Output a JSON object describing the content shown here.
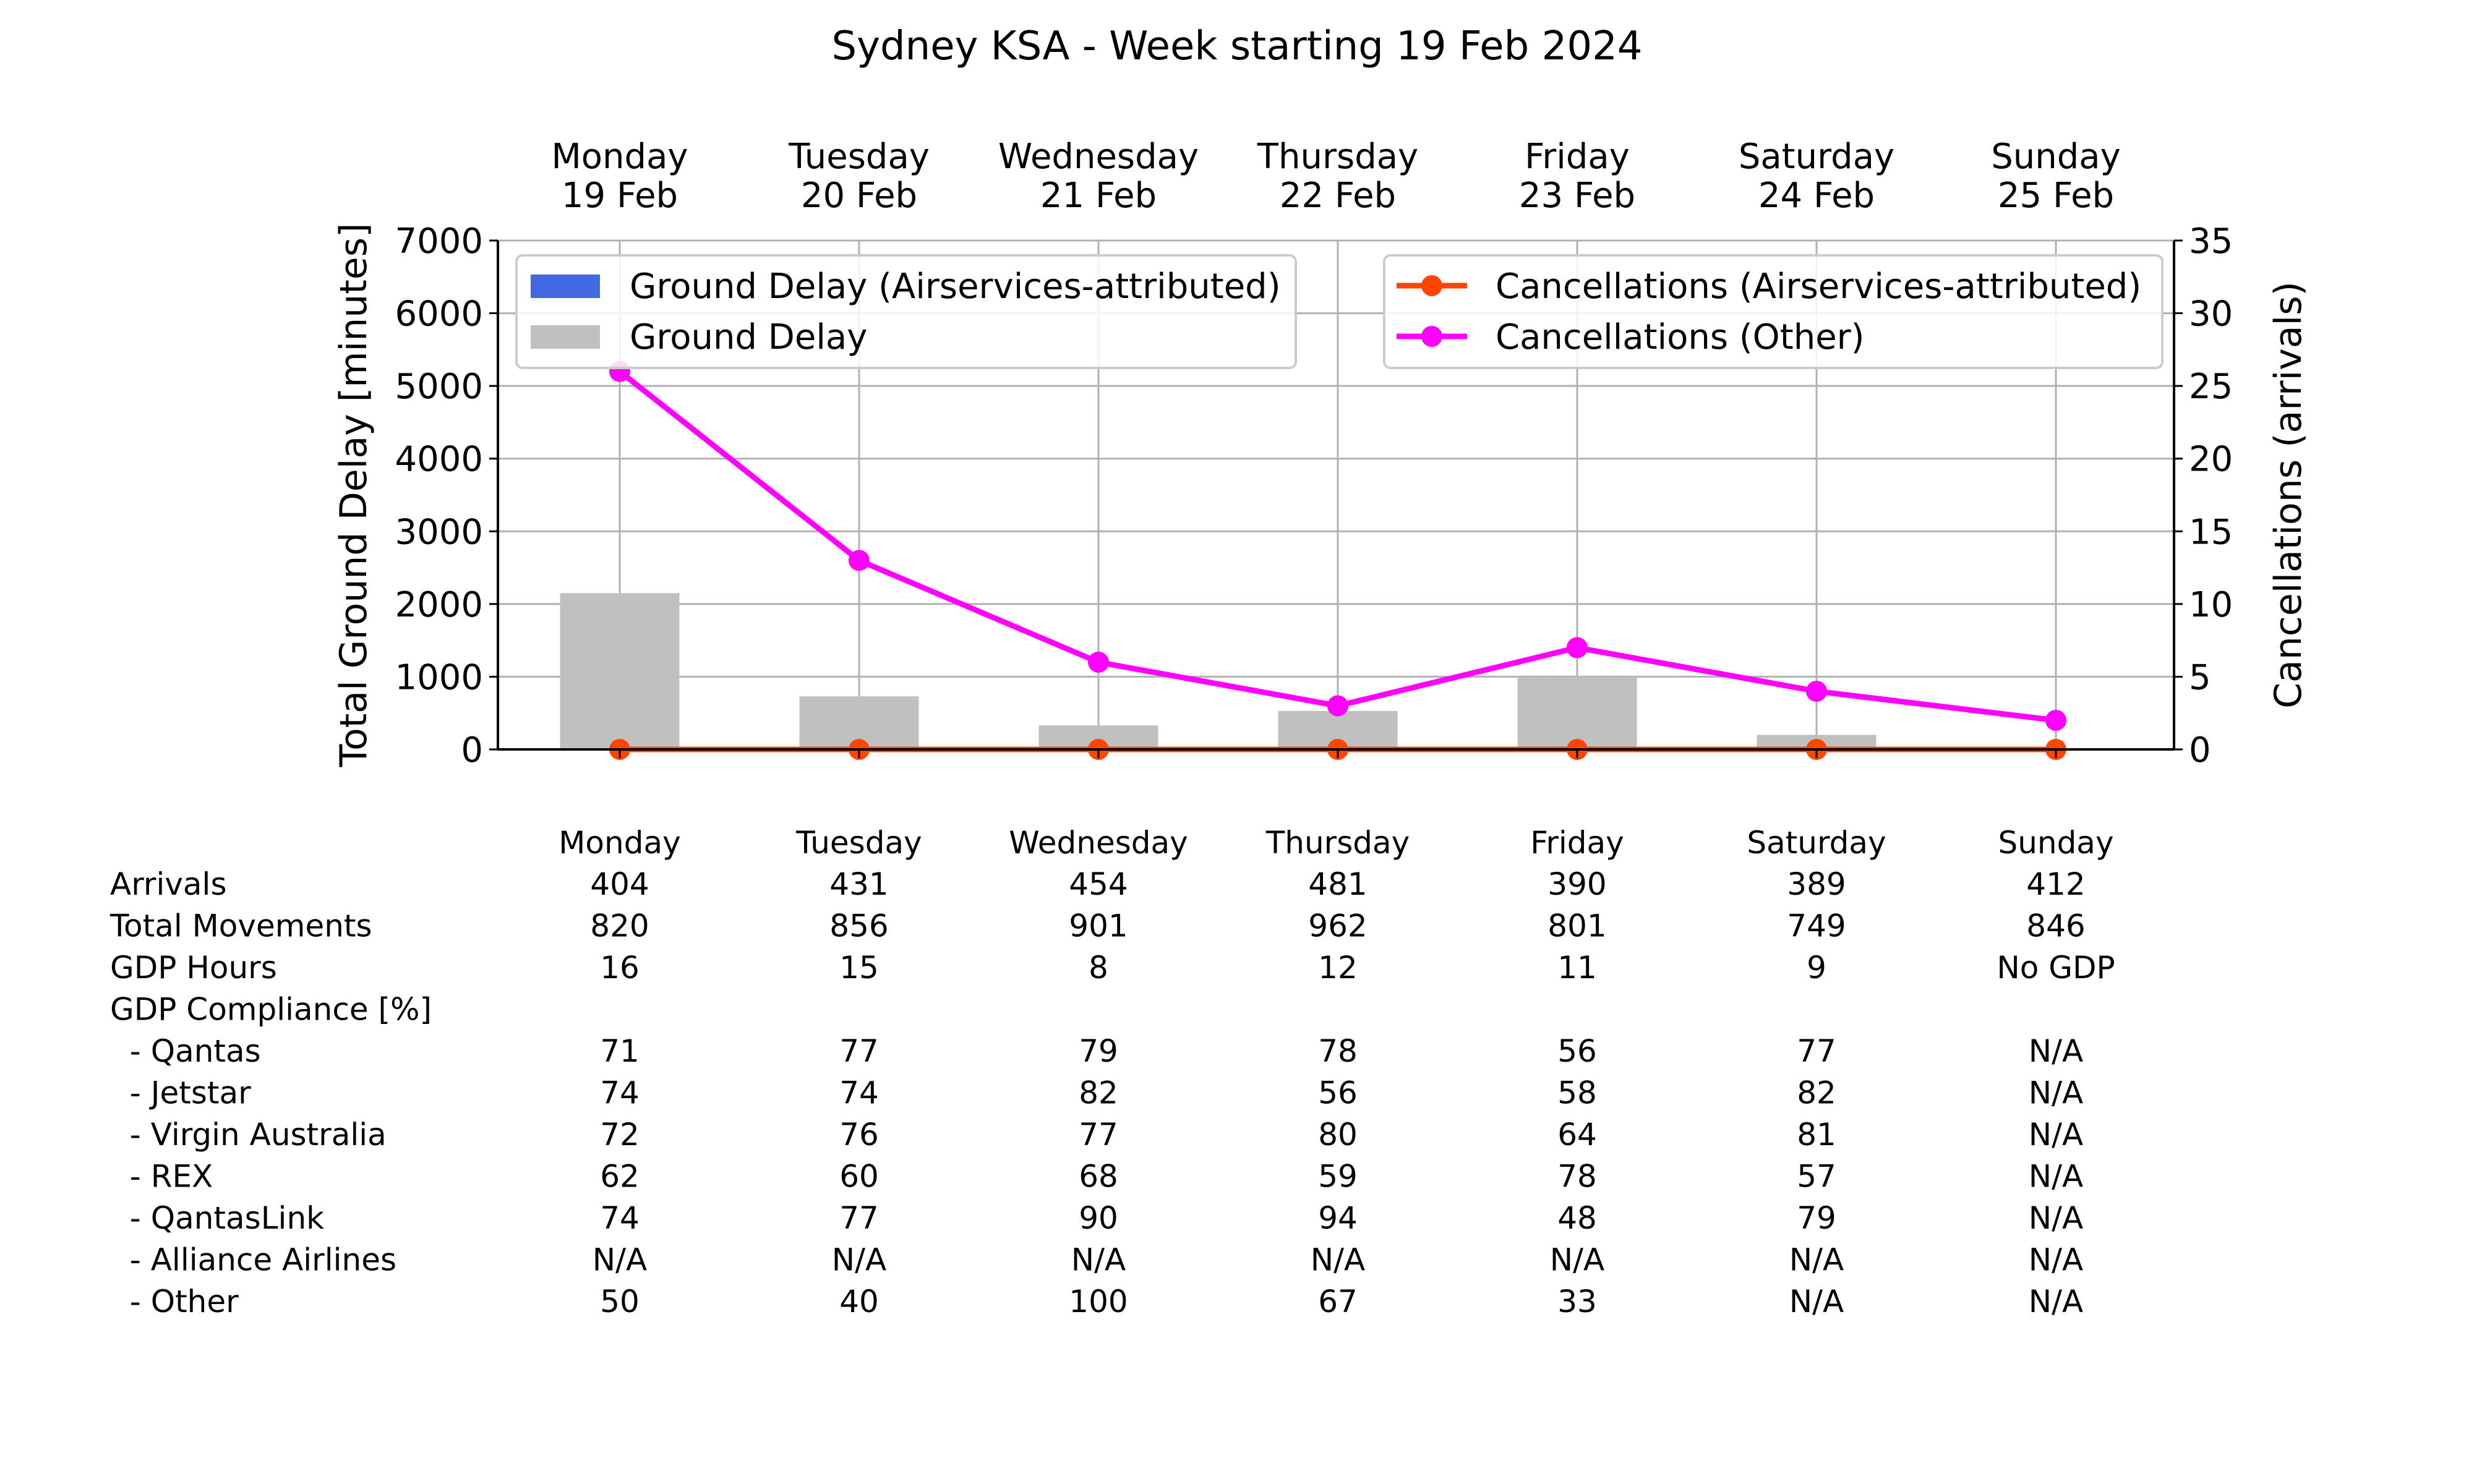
{
  "chart_data": {
    "type": "bar",
    "title": "Sydney KSA - Week starting 19 Feb 2024",
    "days": [
      {
        "name": "Monday",
        "date": "19 Feb"
      },
      {
        "name": "Tuesday",
        "date": "20 Feb"
      },
      {
        "name": "Wednesday",
        "date": "21 Feb"
      },
      {
        "name": "Thursday",
        "date": "22 Feb"
      },
      {
        "name": "Friday",
        "date": "23 Feb"
      },
      {
        "name": "Saturday",
        "date": "24 Feb"
      },
      {
        "name": "Sunday",
        "date": "25 Feb"
      }
    ],
    "y_left": {
      "label": "Total Ground Delay [minutes]",
      "ylim": [
        0,
        7000
      ],
      "ticks": [
        0,
        1000,
        2000,
        3000,
        4000,
        5000,
        6000,
        7000
      ]
    },
    "y_right": {
      "label": "Cancellations (arrivals)",
      "ylim": [
        0,
        35
      ],
      "ticks": [
        0,
        5,
        10,
        15,
        20,
        25,
        30,
        35
      ]
    },
    "bar_series": [
      {
        "name": "Ground Delay (Airservices-attributed)",
        "color": "#4169e1",
        "values": [
          0,
          0,
          0,
          0,
          0,
          0,
          0
        ]
      },
      {
        "name": "Ground Delay",
        "color": "#c0c0c0",
        "values": [
          2150,
          730,
          330,
          530,
          1000,
          200,
          0
        ]
      }
    ],
    "line_series": [
      {
        "name": "Cancellations (Airservices-attributed)",
        "color": "#ff4500",
        "values": [
          0,
          0,
          0,
          0,
          0,
          0,
          0
        ]
      },
      {
        "name": "Cancellations (Other)",
        "color": "#ff00ff",
        "values": [
          26,
          13,
          6,
          3,
          7,
          4,
          2
        ]
      }
    ],
    "grid": true,
    "legend_left_placement": "top-left",
    "legend_right_placement": "top-right"
  },
  "table": {
    "header": [
      "Monday",
      "Tuesday",
      "Wednesday",
      "Thursday",
      "Friday",
      "Saturday",
      "Sunday"
    ],
    "rows": [
      {
        "label": "Arrivals",
        "values": [
          "404",
          "431",
          "454",
          "481",
          "390",
          "389",
          "412"
        ]
      },
      {
        "label": "Total Movements",
        "values": [
          "820",
          "856",
          "901",
          "962",
          "801",
          "749",
          "846"
        ]
      },
      {
        "label": "GDP Hours",
        "values": [
          "16",
          "15",
          "8",
          "12",
          "11",
          "9",
          "No GDP"
        ]
      },
      {
        "label": "GDP Compliance [%]",
        "values": [
          "",
          "",
          "",
          "",
          "",
          "",
          ""
        ]
      },
      {
        "label": "  - Qantas",
        "values": [
          "71",
          "77",
          "79",
          "78",
          "56",
          "77",
          "N/A"
        ]
      },
      {
        "label": "  - Jetstar",
        "values": [
          "74",
          "74",
          "82",
          "56",
          "58",
          "82",
          "N/A"
        ]
      },
      {
        "label": "  - Virgin Australia",
        "values": [
          "72",
          "76",
          "77",
          "80",
          "64",
          "81",
          "N/A"
        ]
      },
      {
        "label": "  - REX",
        "values": [
          "62",
          "60",
          "68",
          "59",
          "78",
          "57",
          "N/A"
        ]
      },
      {
        "label": "  - QantasLink",
        "values": [
          "74",
          "77",
          "90",
          "94",
          "48",
          "79",
          "N/A"
        ]
      },
      {
        "label": "  - Alliance Airlines",
        "values": [
          "N/A",
          "N/A",
          "N/A",
          "N/A",
          "N/A",
          "N/A",
          "N/A"
        ]
      },
      {
        "label": "  - Other",
        "values": [
          "50",
          "40",
          "100",
          "67",
          "33",
          "N/A",
          "N/A"
        ]
      }
    ]
  }
}
